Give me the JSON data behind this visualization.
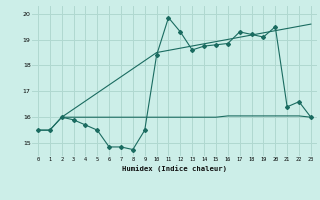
{
  "xlabel": "Humidex (Indice chaleur)",
  "bg_color": "#cceee8",
  "grid_color": "#b0d8d0",
  "line_color": "#1a6b60",
  "series1_x": [
    0,
    1,
    2,
    3,
    4,
    5,
    6,
    7,
    8,
    9,
    10,
    11,
    12,
    13,
    14,
    15,
    16,
    17,
    18,
    19,
    20,
    21,
    22,
    23
  ],
  "series1_y": [
    15.5,
    15.5,
    16.0,
    15.9,
    15.7,
    15.5,
    14.85,
    14.85,
    14.75,
    15.5,
    18.4,
    19.85,
    19.3,
    18.6,
    18.75,
    18.8,
    18.85,
    19.3,
    19.2,
    19.1,
    19.5,
    16.4,
    16.6,
    16.0
  ],
  "series2_x": [
    2,
    10,
    23
  ],
  "series2_y": [
    16.0,
    18.5,
    19.6
  ],
  "series3_x": [
    0,
    1,
    2,
    3,
    4,
    5,
    6,
    7,
    8,
    9,
    10,
    11,
    12,
    13,
    14,
    15,
    16,
    17,
    18,
    19,
    20,
    21,
    22,
    23
  ],
  "series3_y": [
    15.5,
    15.5,
    16.0,
    16.0,
    16.0,
    16.0,
    16.0,
    16.0,
    16.0,
    16.0,
    16.0,
    16.0,
    16.0,
    16.0,
    16.0,
    16.0,
    16.05,
    16.05,
    16.05,
    16.05,
    16.05,
    16.05,
    16.05,
    16.0
  ],
  "ylim": [
    14.5,
    20.3
  ],
  "xlim": [
    -0.5,
    23.5
  ],
  "yticks": [
    15,
    16,
    17,
    18,
    19,
    20
  ],
  "xticks": [
    0,
    1,
    2,
    3,
    4,
    5,
    6,
    7,
    8,
    9,
    10,
    11,
    12,
    13,
    14,
    15,
    16,
    17,
    18,
    19,
    20,
    21,
    22,
    23
  ]
}
